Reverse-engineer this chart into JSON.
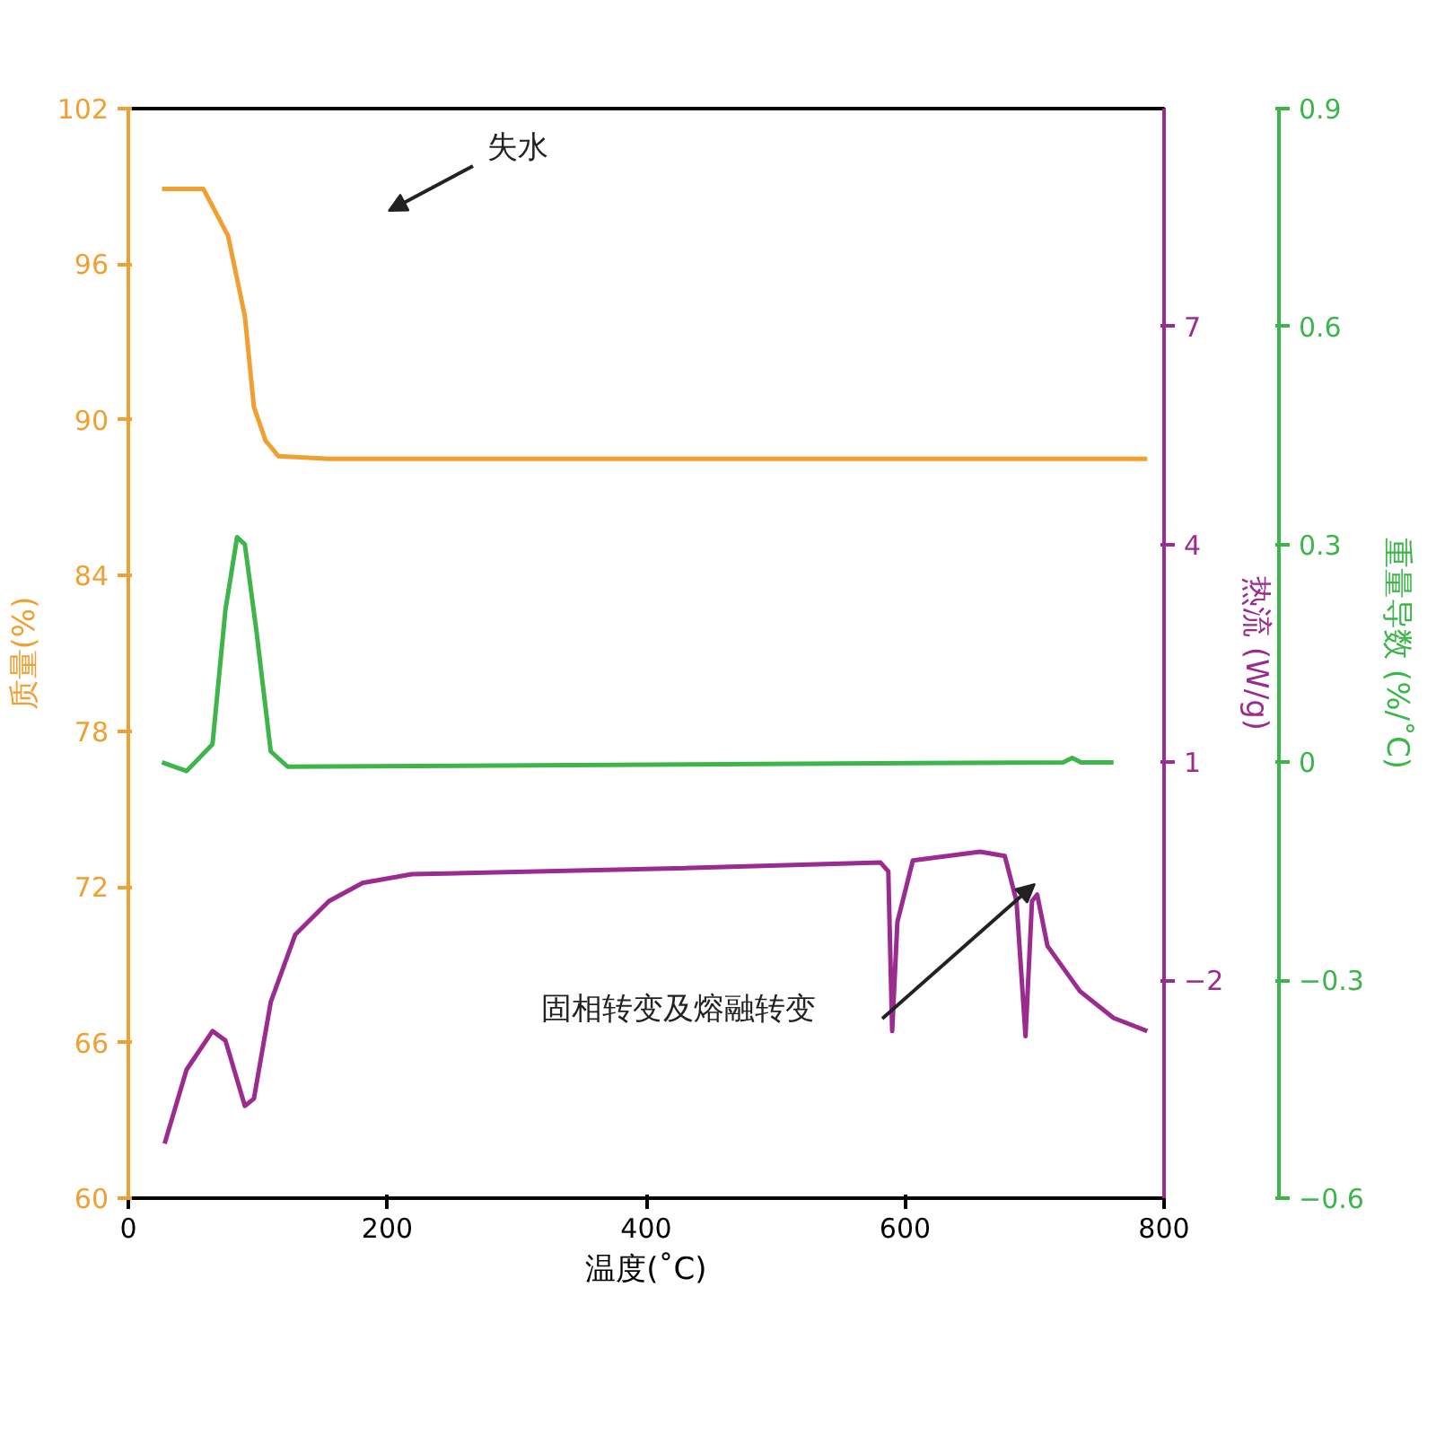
{
  "chart_data": {
    "type": "line",
    "xlabel": "温度(˚C)",
    "ylabel": "质量(%)",
    "y2label": "重量导数 (%/˚C)",
    "y3label": "热流 (W/g)",
    "xlim": [
      0,
      800
    ],
    "xticks": [
      0,
      200,
      400,
      600,
      800
    ],
    "ylim": [
      60,
      102
    ],
    "yticks": [
      60,
      66,
      72,
      78,
      84,
      90,
      96,
      102
    ],
    "y2lim": [
      -0.6,
      0.9
    ],
    "y2ticks": [
      -0.6,
      -0.3,
      0.0,
      0.3,
      0.6,
      0.9
    ],
    "y3lim": [
      -5,
      10
    ],
    "y3ticks": [
      -2,
      1,
      4,
      7
    ],
    "grid": false,
    "annotations": [
      "失水",
      "固相转变及熔融转变"
    ],
    "series": [
      {
        "color": "#f0a030",
        "axis": "y",
        "x": [
          26,
          58,
          77,
          90,
          97,
          106,
          116,
          155,
          400,
          787
        ],
        "values": [
          98.9,
          98.9,
          97.1,
          94,
          90.5,
          89.2,
          88.6,
          88.5,
          88.5,
          88.5
        ]
      },
      {
        "color": "#3cb54a",
        "axis": "y2",
        "x": [
          26,
          45,
          65,
          75,
          84,
          90,
          99,
          110,
          123,
          722,
          729,
          736,
          761
        ],
        "values": [
          0.0,
          -0.012,
          0.025,
          0.21,
          0.31,
          0.3,
          0.18,
          0.015,
          -0.006,
          0.0,
          0.006,
          0.0,
          0.0
        ]
      },
      {
        "color": "#9b2c8f",
        "axis": "y3",
        "x": [
          28,
          45,
          65,
          75,
          90,
          97,
          110,
          129,
          155,
          181,
          219,
          400,
          581,
          587,
          590,
          594,
          606,
          658,
          677,
          686,
          693,
          698,
          702,
          710,
          735,
          761,
          787
        ],
        "values": [
          -4.25,
          -3.23,
          -2.7,
          -2.83,
          -3.73,
          -3.63,
          -2.3,
          -1.37,
          -0.91,
          -0.66,
          -0.54,
          -0.47,
          -0.38,
          -0.5,
          -2.7,
          -1.2,
          -0.35,
          -0.23,
          -0.29,
          -0.91,
          -2.77,
          -0.91,
          -0.82,
          -1.53,
          -2.15,
          -2.52,
          -2.7
        ]
      }
    ]
  }
}
